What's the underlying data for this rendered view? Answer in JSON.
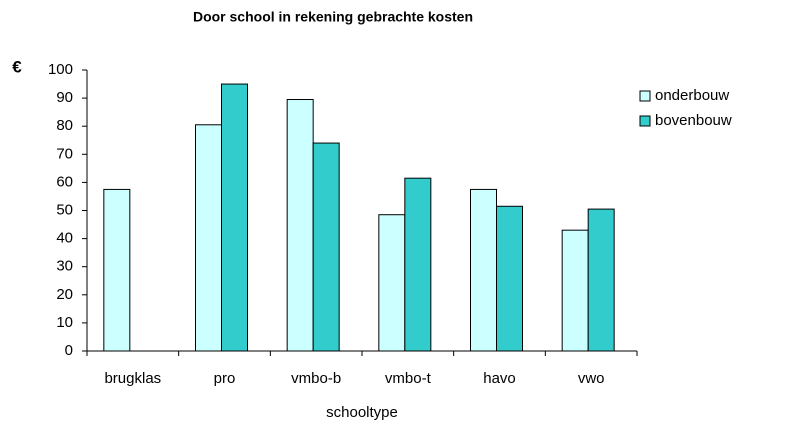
{
  "chart_data": {
    "type": "bar",
    "title": "Door school in rekening gebrachte kosten",
    "y_label": "€",
    "x_label": "schooltype",
    "categories": [
      "brugklas",
      "pro",
      "vmbo-b",
      "vmbo-t",
      "havo",
      "vwo"
    ],
    "series": [
      {
        "name": "onderbouw",
        "color": "#ccffff",
        "values": [
          57.5,
          80.5,
          89.5,
          48.5,
          57.5,
          43
        ]
      },
      {
        "name": "bovenbouw",
        "color": "#33cccc",
        "values": [
          null,
          95,
          74,
          61.5,
          51.5,
          50.5
        ]
      }
    ],
    "ylim": [
      0,
      100
    ],
    "yticks": [
      0,
      10,
      20,
      30,
      40,
      50,
      60,
      70,
      80,
      90,
      100
    ],
    "grid": false,
    "legend": "right"
  }
}
